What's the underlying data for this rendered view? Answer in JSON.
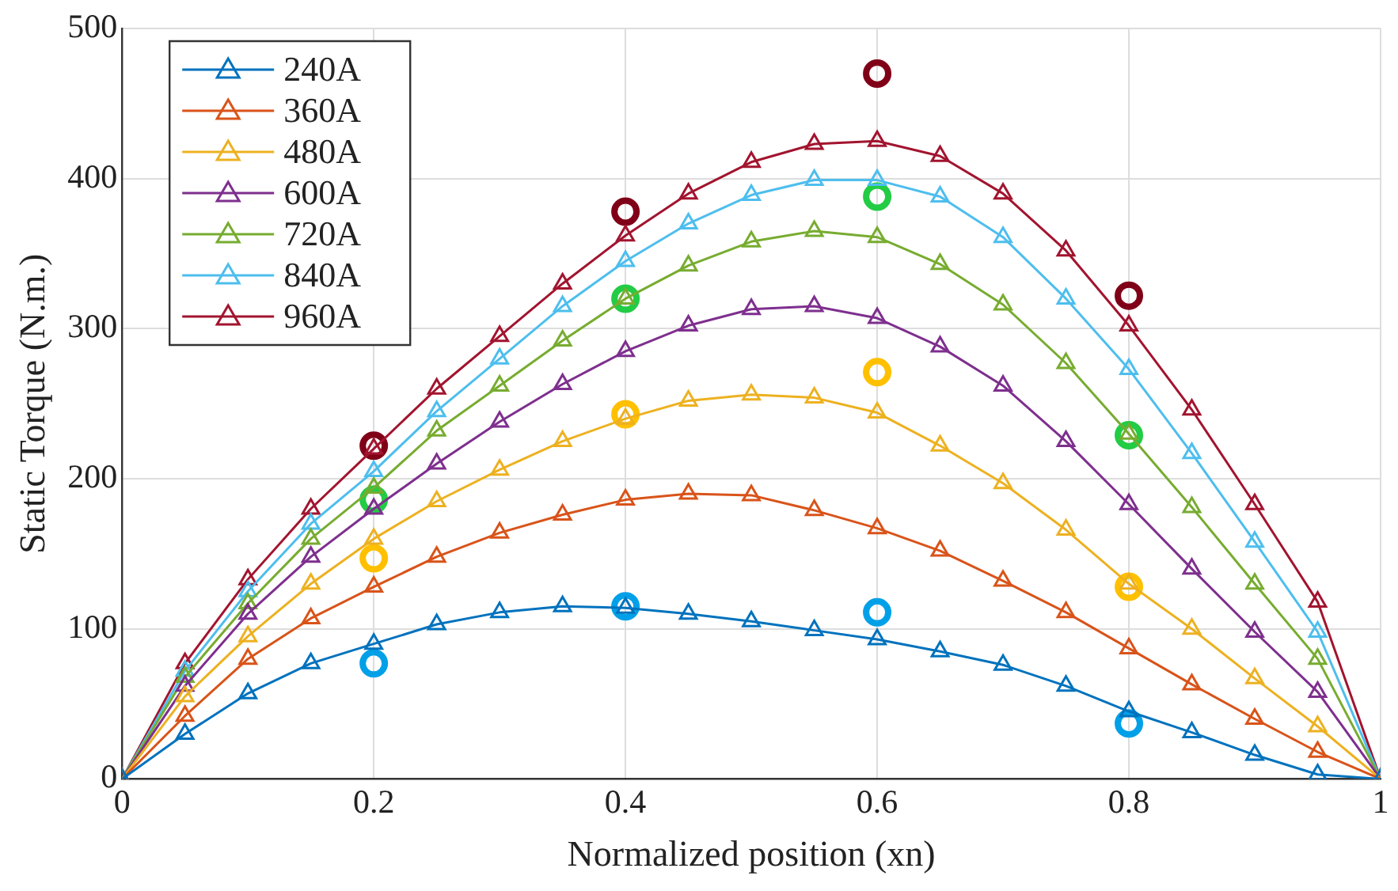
{
  "chart_data": {
    "type": "line",
    "xlabel": "Normalized position (xn)",
    "ylabel": "Static Torque (N.m.)",
    "x": [
      0,
      0.05,
      0.1,
      0.15,
      0.2,
      0.25,
      0.3,
      0.35,
      0.4,
      0.45,
      0.5,
      0.55,
      0.6,
      0.65,
      0.7,
      0.75,
      0.8,
      0.85,
      0.9,
      0.95,
      1
    ],
    "xlim": [
      0,
      1
    ],
    "xticks": [
      0,
      0.2,
      0.4,
      0.6,
      0.8,
      1
    ],
    "ylim": [
      0,
      500
    ],
    "yticks": [
      0,
      100,
      200,
      300,
      400,
      500
    ],
    "grid": true,
    "legend": "top left",
    "marker": "triangle",
    "line_style": "solid",
    "series": [
      {
        "name": "240A",
        "color": "#0072bd",
        "values": [
          0,
          30,
          57,
          77,
          90,
          103,
          111,
          115,
          114,
          110,
          105,
          99,
          93,
          85,
          76,
          62,
          45,
          31,
          16,
          3,
          0
        ]
      },
      {
        "name": "360A",
        "color": "#d95319",
        "values": [
          0,
          42,
          80,
          107,
          128,
          148,
          164,
          176,
          186,
          190,
          189,
          179,
          167,
          152,
          132,
          111,
          87,
          63,
          40,
          18,
          0
        ]
      },
      {
        "name": "480A",
        "color": "#edb120",
        "values": [
          0,
          55,
          95,
          130,
          160,
          185,
          206,
          225,
          240,
          252,
          256,
          254,
          244,
          222,
          197,
          166,
          130,
          100,
          67,
          35,
          0
        ]
      },
      {
        "name": "600A",
        "color": "#7e2f8e",
        "values": [
          0,
          62,
          110,
          148,
          180,
          210,
          238,
          263,
          285,
          302,
          313,
          315,
          307,
          288,
          262,
          225,
          183,
          140,
          98,
          58,
          0
        ]
      },
      {
        "name": "720A",
        "color": "#77ac30",
        "values": [
          0,
          68,
          117,
          160,
          194,
          232,
          262,
          292,
          320,
          342,
          358,
          365,
          361,
          343,
          316,
          277,
          230,
          181,
          130,
          80,
          0
        ]
      },
      {
        "name": "840A",
        "color": "#4dbeee",
        "values": [
          0,
          72,
          125,
          170,
          205,
          245,
          280,
          315,
          345,
          370,
          389,
          399,
          399,
          388,
          361,
          320,
          273,
          217,
          158,
          98,
          0
        ]
      },
      {
        "name": "960A",
        "color": "#a2142f",
        "values": [
          0,
          77,
          133,
          180,
          220,
          260,
          295,
          330,
          362,
          390,
          411,
          423,
          425,
          415,
          390,
          352,
          302,
          246,
          183,
          118,
          0
        ]
      },
      {
        "type": "scatter",
        "marker": "circle",
        "color": "#800018",
        "x": [
          0.2,
          0.4,
          0.6,
          0.8
        ],
        "values": [
          222,
          378,
          470,
          322
        ]
      },
      {
        "type": "scatter",
        "marker": "circle",
        "color": "#22cc44",
        "x": [
          0.2,
          0.4,
          0.6,
          0.8
        ],
        "values": [
          186,
          320,
          388,
          229
        ]
      },
      {
        "type": "scatter",
        "marker": "circle",
        "color": "#ffc000",
        "x": [
          0.2,
          0.4,
          0.6,
          0.8
        ],
        "values": [
          147,
          243,
          271,
          128
        ]
      },
      {
        "type": "scatter",
        "marker": "circle",
        "color": "#00a0e8",
        "x": [
          0.2,
          0.4,
          0.6,
          0.8
        ],
        "values": [
          77,
          115,
          111,
          37
        ]
      }
    ]
  }
}
